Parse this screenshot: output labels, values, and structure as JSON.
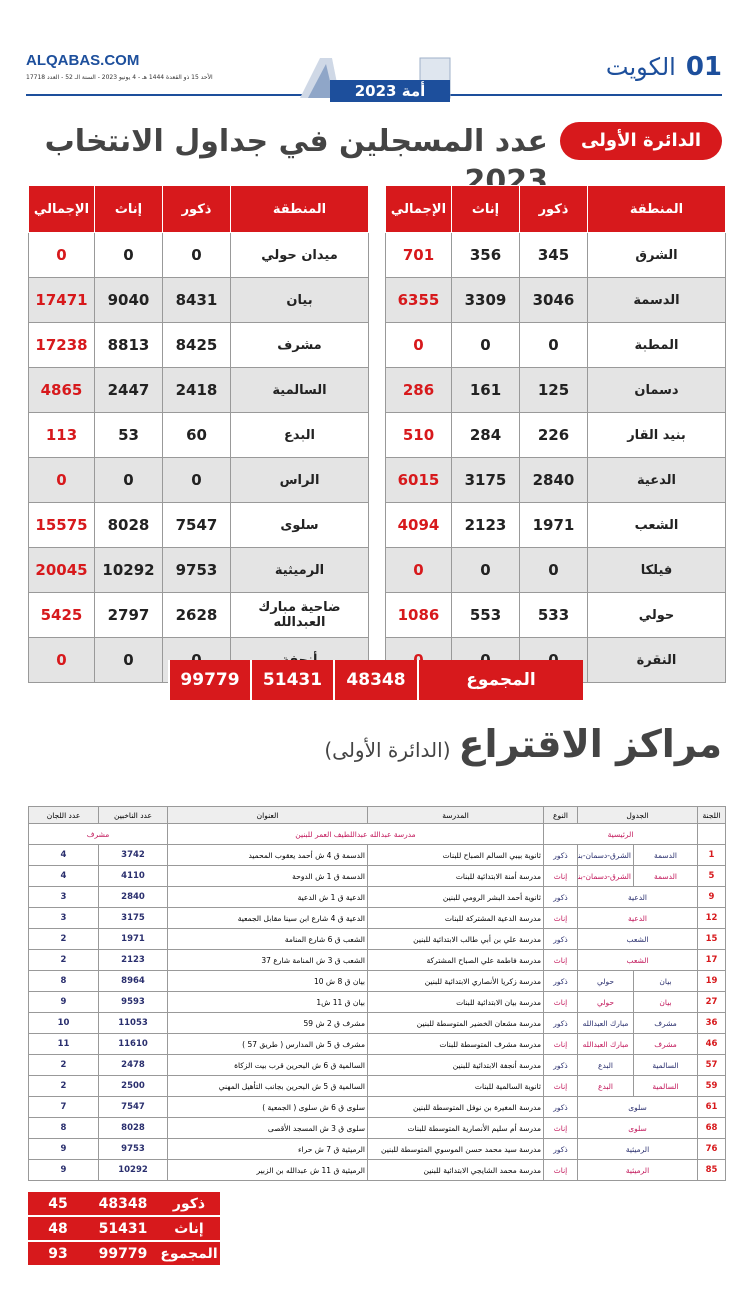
{
  "header": {
    "site": "ALQABAS.COM",
    "date": "الأحد 15 ذو القعدة 1444 هـ - 4 يونيو 2023 - السنة الـ 52 - العدد 17718",
    "logo": "أمة 2023",
    "section_number": "01",
    "section": "الكويت"
  },
  "registered": {
    "badge": "الدائرة الأولى",
    "title": "عدد المسجلين في جداول الانتخاب 2023",
    "columns": [
      "المنطقة",
      "ذكور",
      "إناث",
      "الإجمالي"
    ],
    "tables": [
      {
        "rows": [
          [
            "الشرق",
            345,
            356,
            701
          ],
          [
            "الدسمة",
            3046,
            3309,
            6355
          ],
          [
            "المطبة",
            0,
            0,
            0
          ],
          [
            "دسمان",
            125,
            161,
            286
          ],
          [
            "بنيد القار",
            226,
            284,
            510
          ],
          [
            "الدعية",
            2840,
            3175,
            6015
          ],
          [
            "الشعب",
            1971,
            2123,
            4094
          ],
          [
            "فيلكا",
            0,
            0,
            0
          ],
          [
            "حولي",
            533,
            553,
            1086
          ],
          [
            "النقرة",
            0,
            0,
            0
          ]
        ]
      },
      {
        "rows": [
          [
            "ميدان حولي",
            0,
            0,
            0
          ],
          [
            "بيان",
            8431,
            9040,
            17471
          ],
          [
            "مشرف",
            8425,
            8813,
            17238
          ],
          [
            "السالمية",
            2418,
            2447,
            4865
          ],
          [
            "البدع",
            60,
            53,
            113
          ],
          [
            "الراس",
            0,
            0,
            0
          ],
          [
            "سلوى",
            7547,
            8028,
            15575
          ],
          [
            "الرميثية",
            9753,
            10292,
            20045
          ],
          [
            "ضاحية مبارك العبدالله",
            2628,
            2797,
            5425
          ],
          [
            "أنجفة",
            0,
            0,
            0
          ]
        ]
      }
    ],
    "total": {
      "label": "المجموع",
      "values": [
        48348,
        51431,
        99779
      ]
    }
  },
  "polling": {
    "title": "مراكز الاقتراع",
    "subtitle": "(الدائرة الأولى)",
    "columns": [
      "اللجنة",
      "الجدول",
      "النوع",
      "المدرسة",
      "العنوان",
      "عدد الناخبين",
      "عدد اللجان"
    ],
    "main": {
      "label": "الرئيسية",
      "school": "مدرسة عبدالله عبداللطيف العمر للبنين",
      "area": "مشرف"
    },
    "rows": [
      {
        "committee": 1,
        "table": [
          "الدسمة",
          "الشرق-دسمان-بنيد القار"
        ],
        "gender": "ذكور",
        "school": "ثانوية بيبي السالم الصباح للبنات",
        "address": "الدسمة ق 4 ش أحمد يعقوب المحميد",
        "voters": 3742,
        "committees": 4
      },
      {
        "committee": 5,
        "table": [
          "الدسمة",
          "الشرق-دسمان-بنيد القار"
        ],
        "gender": "إناث",
        "school": "مدرسة أمنة الابتدائية للبنات",
        "address": "الدسمة ق 1 ش الدوحة",
        "voters": 4110,
        "committees": 4
      },
      {
        "committee": 9,
        "table": [
          "الدعية"
        ],
        "gender": "ذكور",
        "school": "ثانوية أحمد البشر الرومي للبنين",
        "address": "الدعية ق 1 ش الدعية",
        "voters": 2840,
        "committees": 3
      },
      {
        "committee": 12,
        "table": [
          "الدعية"
        ],
        "gender": "إناث",
        "school": "مدرسة الدعية المشتركة للبنات",
        "address": "الدعية ق 4 شارع ابن سينا مقابل الجمعية",
        "voters": 3175,
        "committees": 3
      },
      {
        "committee": 15,
        "table": [
          "الشعب"
        ],
        "gender": "ذكور",
        "school": "مدرسة علي بن أبي طالب الابتدائية للبنين",
        "address": "الشعب ق 6 شارع المنامة",
        "voters": 1971,
        "committees": 2
      },
      {
        "committee": 17,
        "table": [
          "الشعب"
        ],
        "gender": "إناث",
        "school": "مدرسة فاطمة علي الصباح المشتركة",
        "address": "الشعب ق 3 ش المنامة شارع 37",
        "voters": 2123,
        "committees": 2
      },
      {
        "committee": 19,
        "table": [
          "بيان",
          "حولي"
        ],
        "gender": "ذكور",
        "school": "مدرسة زكريا الأنصاري الابتدائية للبنين",
        "address": "بيان ق 8 ش 10",
        "voters": 8964,
        "committees": 8
      },
      {
        "committee": 27,
        "table": [
          "بيان",
          "حولي"
        ],
        "gender": "إناث",
        "school": "مدرسة بيان الابتدائية للبنات",
        "address": "بيان ق 11 ش1",
        "voters": 9593,
        "committees": 9
      },
      {
        "committee": 36,
        "table": [
          "مشرف",
          "مبارك العبدالله"
        ],
        "gender": "ذكور",
        "school": "مدرسة مشعان الخضير المتوسطة للبنين",
        "address": "مشرف ق 2 ش 59",
        "voters": 11053,
        "committees": 10
      },
      {
        "committee": 46,
        "table": [
          "مشرف",
          "مبارك العبدالله"
        ],
        "gender": "إناث",
        "school": "مدرسة مشرف المتوسطة للبنات",
        "address": "مشرف ق 5 ش المدارس ( طريق 57 )",
        "voters": 11610,
        "committees": 11
      },
      {
        "committee": 57,
        "table": [
          "السالمية",
          "البدع"
        ],
        "gender": "ذكور",
        "school": "مدرسة أنجفة الابتدائية للبنين",
        "address": "السالمية ق 6 ش البحرين قرب بيت الزكاة",
        "voters": 2478,
        "committees": 2
      },
      {
        "committee": 59,
        "table": [
          "السالمية",
          "البدع"
        ],
        "gender": "إناث",
        "school": "ثانوية السالمية للبنات",
        "address": "السالمية ق 5 ش البحرين بجانب التأهيل المهني",
        "voters": 2500,
        "committees": 2
      },
      {
        "committee": 61,
        "table": [
          "سلوى"
        ],
        "gender": "ذكور",
        "school": "مدرسة المغيرة بن نوفل المتوسطة للبنين",
        "address": "سلوى ق 6 ش سلوى ( الجمعية )",
        "voters": 7547,
        "committees": 7
      },
      {
        "committee": 68,
        "table": [
          "سلوى"
        ],
        "gender": "إناث",
        "school": "مدرسة أم سليم الأنصارية المتوسطة للبنات",
        "address": "سلوى ق 3 ش المسجد الأقصى",
        "voters": 8028,
        "committees": 8
      },
      {
        "committee": 76,
        "table": [
          "الرميثية"
        ],
        "gender": "ذكور",
        "school": "مدرسة سيد محمد حسن الموسوي المتوسطة للبنين",
        "address": "الرميثية ق 7 ش حراء",
        "voters": 9753,
        "committees": 9
      },
      {
        "committee": 85,
        "table": [
          "الرميثية"
        ],
        "gender": "إناث",
        "school": "مدرسة محمد الشايجي الابتدائية للبنين",
        "address": "الرميثية ق 11 ش عبدالله بن الزبير",
        "voters": 10292,
        "committees": 9
      }
    ],
    "summary": [
      {
        "label": "ذكور",
        "voters": 48348,
        "committees": 45
      },
      {
        "label": "إناث",
        "voters": 51431,
        "committees": 48
      },
      {
        "label": "المجموع",
        "voters": 99779,
        "committees": 93
      }
    ]
  }
}
